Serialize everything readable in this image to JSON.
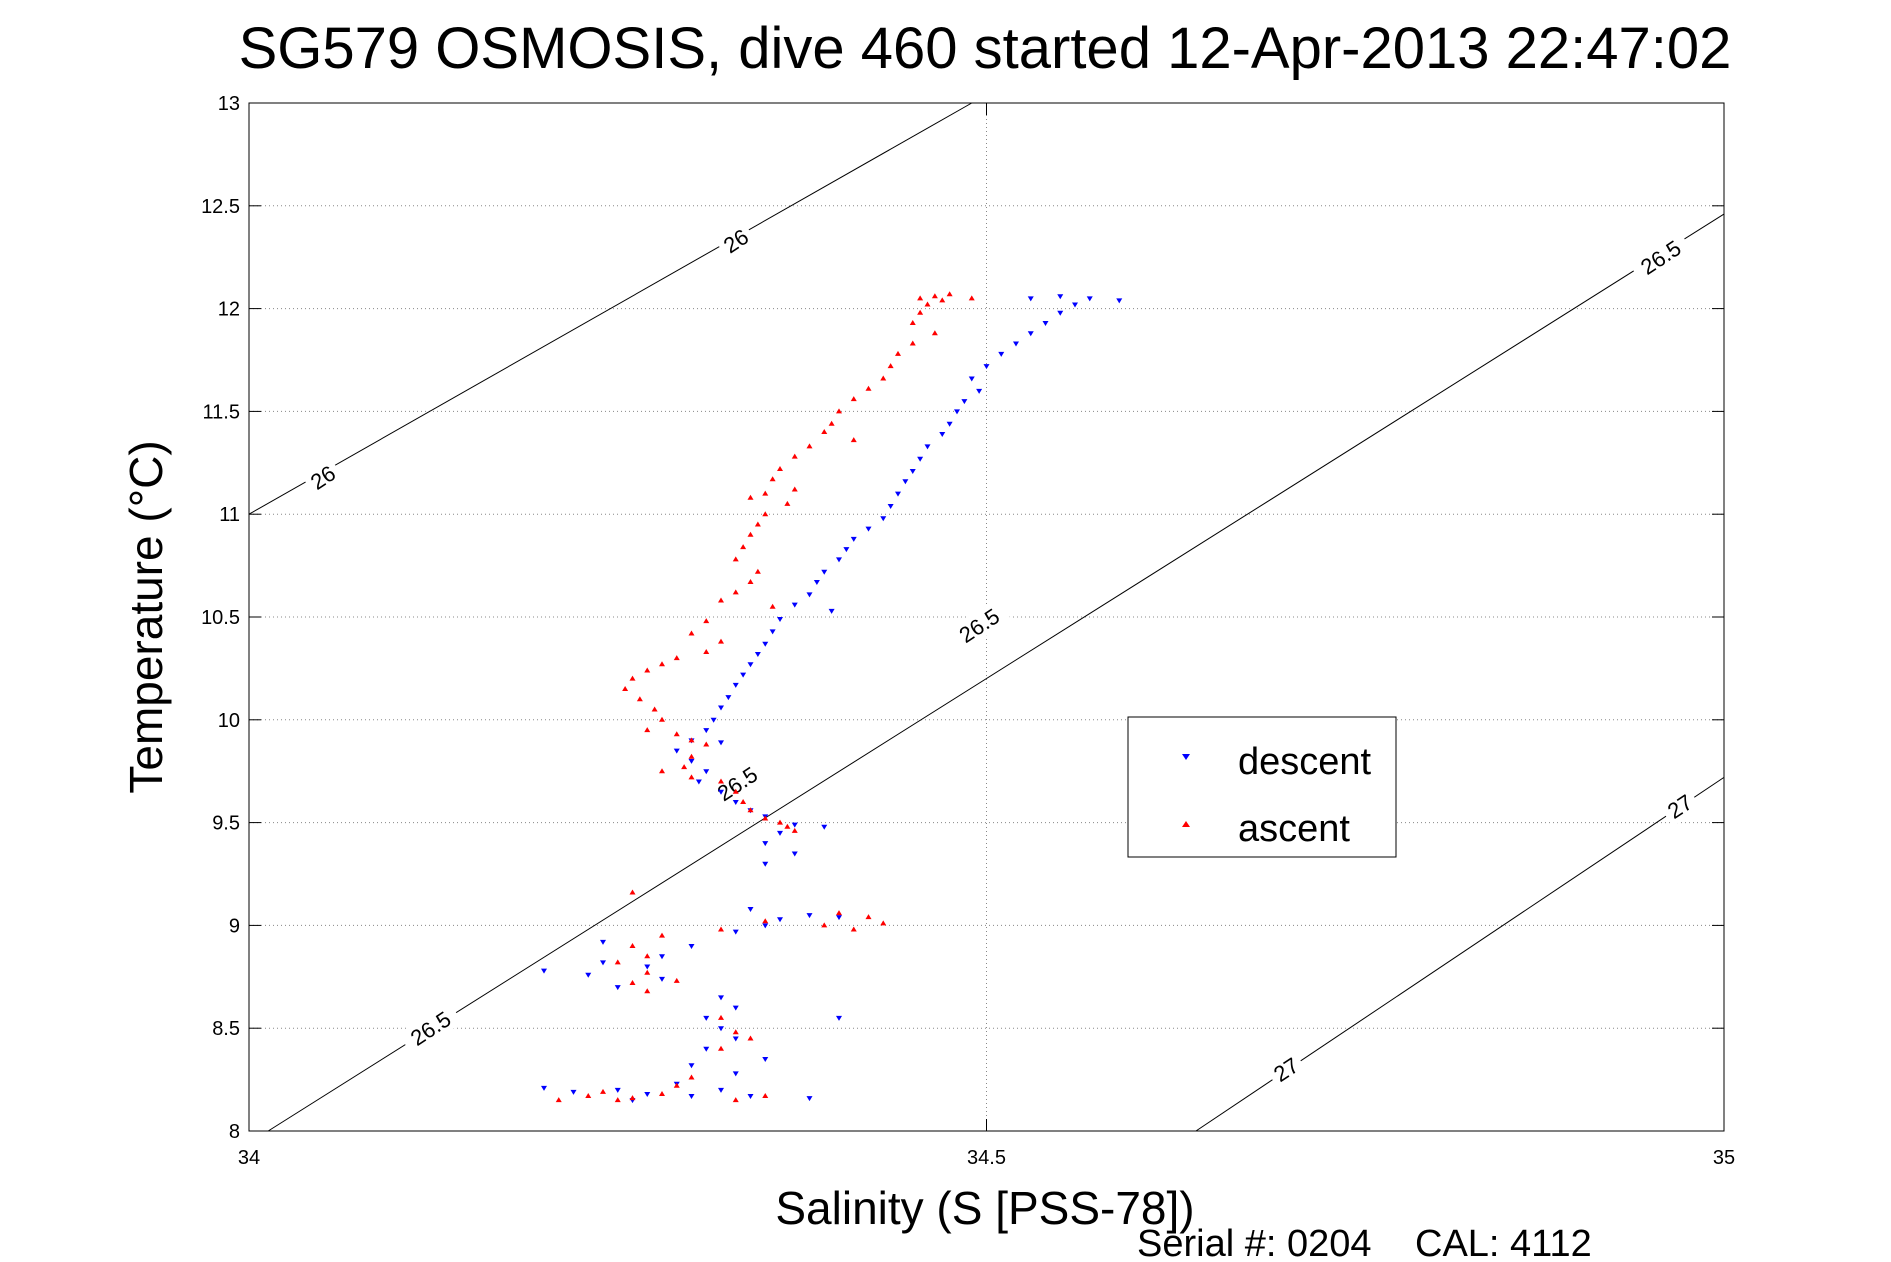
{
  "chart_data": {
    "type": "scatter",
    "title": "SG579 OSMOSIS, dive 460 started 12-Apr-2013 22:47:02",
    "xlabel": "Salinity (S [PSS-78])",
    "ylabel": "Temperature (°C)",
    "xlim": [
      34.0,
      35.0
    ],
    "ylim": [
      8.0,
      13.0
    ],
    "xticks": [
      "34",
      "34.5",
      "35"
    ],
    "yticks": [
      "8",
      "8.5",
      "9",
      "9.5",
      "10",
      "10.5",
      "11",
      "11.5",
      "12",
      "12.5",
      "13"
    ],
    "grid": true,
    "legend": {
      "placement": "center-right",
      "entries": [
        "descent",
        "ascent"
      ]
    },
    "series": [
      {
        "name": "descent",
        "color": "#0000ff",
        "marker": "triangle-down",
        "points": [
          [
            34.59,
            12.04
          ],
          [
            34.57,
            12.05
          ],
          [
            34.55,
            12.06
          ],
          [
            34.53,
            12.05
          ],
          [
            34.56,
            12.02
          ],
          [
            34.55,
            11.98
          ],
          [
            34.54,
            11.93
          ],
          [
            34.53,
            11.88
          ],
          [
            34.52,
            11.83
          ],
          [
            34.51,
            11.78
          ],
          [
            34.5,
            11.72
          ],
          [
            34.49,
            11.66
          ],
          [
            34.495,
            11.6
          ],
          [
            34.485,
            11.55
          ],
          [
            34.48,
            11.5
          ],
          [
            34.475,
            11.44
          ],
          [
            34.47,
            11.39
          ],
          [
            34.46,
            11.33
          ],
          [
            34.455,
            11.27
          ],
          [
            34.45,
            11.21
          ],
          [
            34.445,
            11.16
          ],
          [
            34.44,
            11.1
          ],
          [
            34.435,
            11.04
          ],
          [
            34.43,
            10.98
          ],
          [
            34.42,
            10.93
          ],
          [
            34.41,
            10.88
          ],
          [
            34.405,
            10.83
          ],
          [
            34.4,
            10.78
          ],
          [
            34.39,
            10.72
          ],
          [
            34.385,
            10.67
          ],
          [
            34.38,
            10.61
          ],
          [
            34.37,
            10.56
          ],
          [
            34.395,
            10.53
          ],
          [
            34.36,
            10.49
          ],
          [
            34.355,
            10.43
          ],
          [
            34.35,
            10.37
          ],
          [
            34.345,
            10.32
          ],
          [
            34.34,
            10.27
          ],
          [
            34.335,
            10.22
          ],
          [
            34.33,
            10.17
          ],
          [
            34.325,
            10.11
          ],
          [
            34.32,
            10.06
          ],
          [
            34.315,
            10.0
          ],
          [
            34.31,
            9.95
          ],
          [
            34.3,
            9.9
          ],
          [
            34.32,
            9.89
          ],
          [
            34.29,
            9.85
          ],
          [
            34.3,
            9.8
          ],
          [
            34.31,
            9.75
          ],
          [
            34.305,
            9.7
          ],
          [
            34.32,
            9.65
          ],
          [
            34.33,
            9.6
          ],
          [
            34.34,
            9.56
          ],
          [
            34.35,
            9.53
          ],
          [
            34.37,
            9.49
          ],
          [
            34.39,
            9.48
          ],
          [
            34.36,
            9.45
          ],
          [
            34.35,
            9.4
          ],
          [
            34.37,
            9.35
          ],
          [
            34.35,
            9.3
          ],
          [
            34.38,
            9.05
          ],
          [
            34.4,
            9.04
          ],
          [
            34.36,
            9.03
          ],
          [
            34.34,
            9.08
          ],
          [
            34.35,
            9.0
          ],
          [
            34.33,
            8.97
          ],
          [
            34.3,
            8.9
          ],
          [
            34.28,
            8.85
          ],
          [
            34.27,
            8.8
          ],
          [
            34.24,
            8.82
          ],
          [
            34.23,
            8.76
          ],
          [
            34.2,
            8.78
          ],
          [
            34.25,
            8.7
          ],
          [
            34.32,
            8.65
          ],
          [
            34.33,
            8.6
          ],
          [
            34.31,
            8.55
          ],
          [
            34.32,
            8.5
          ],
          [
            34.33,
            8.45
          ],
          [
            34.31,
            8.4
          ],
          [
            34.3,
            8.32
          ],
          [
            34.35,
            8.35
          ],
          [
            34.33,
            8.28
          ],
          [
            34.32,
            8.2
          ],
          [
            34.3,
            8.17
          ],
          [
            34.27,
            8.18
          ],
          [
            34.25,
            8.2
          ],
          [
            34.22,
            8.19
          ],
          [
            34.2,
            8.21
          ],
          [
            34.38,
            8.16
          ],
          [
            34.34,
            8.17
          ],
          [
            34.29,
            8.23
          ],
          [
            34.26,
            8.15
          ],
          [
            34.4,
            8.55
          ],
          [
            34.24,
            8.92
          ],
          [
            34.28,
            8.74
          ]
        ]
      },
      {
        "name": "ascent",
        "color": "#ff0000",
        "marker": "triangle-up",
        "points": [
          [
            34.475,
            12.07
          ],
          [
            34.465,
            12.06
          ],
          [
            34.455,
            12.05
          ],
          [
            34.47,
            12.04
          ],
          [
            34.49,
            12.05
          ],
          [
            34.46,
            12.02
          ],
          [
            34.455,
            11.98
          ],
          [
            34.45,
            11.93
          ],
          [
            34.465,
            11.88
          ],
          [
            34.45,
            11.83
          ],
          [
            34.44,
            11.78
          ],
          [
            34.435,
            11.72
          ],
          [
            34.43,
            11.66
          ],
          [
            34.42,
            11.61
          ],
          [
            34.41,
            11.56
          ],
          [
            34.4,
            11.5
          ],
          [
            34.395,
            11.44
          ],
          [
            34.39,
            11.4
          ],
          [
            34.41,
            11.36
          ],
          [
            34.38,
            11.33
          ],
          [
            34.37,
            11.28
          ],
          [
            34.36,
            11.22
          ],
          [
            34.355,
            11.17
          ],
          [
            34.37,
            11.12
          ],
          [
            34.35,
            11.1
          ],
          [
            34.34,
            11.08
          ],
          [
            34.365,
            11.05
          ],
          [
            34.35,
            11.0
          ],
          [
            34.345,
            10.95
          ],
          [
            34.34,
            10.9
          ],
          [
            34.335,
            10.84
          ],
          [
            34.33,
            10.78
          ],
          [
            34.345,
            10.72
          ],
          [
            34.34,
            10.67
          ],
          [
            34.33,
            10.62
          ],
          [
            34.32,
            10.58
          ],
          [
            34.355,
            10.55
          ],
          [
            34.31,
            10.48
          ],
          [
            34.3,
            10.42
          ],
          [
            34.32,
            10.38
          ],
          [
            34.31,
            10.33
          ],
          [
            34.29,
            10.3
          ],
          [
            34.28,
            10.27
          ],
          [
            34.27,
            10.24
          ],
          [
            34.26,
            10.2
          ],
          [
            34.255,
            10.15
          ],
          [
            34.265,
            10.1
          ],
          [
            34.275,
            10.05
          ],
          [
            34.28,
            10.0
          ],
          [
            34.27,
            9.95
          ],
          [
            34.29,
            9.93
          ],
          [
            34.3,
            9.9
          ],
          [
            34.31,
            9.88
          ],
          [
            34.3,
            9.82
          ],
          [
            34.295,
            9.77
          ],
          [
            34.28,
            9.75
          ],
          [
            34.3,
            9.72
          ],
          [
            34.32,
            9.7
          ],
          [
            34.33,
            9.65
          ],
          [
            34.335,
            9.6
          ],
          [
            34.34,
            9.56
          ],
          [
            34.35,
            9.52
          ],
          [
            34.36,
            9.5
          ],
          [
            34.37,
            9.46
          ],
          [
            34.365,
            9.48
          ],
          [
            34.4,
            9.06
          ],
          [
            34.42,
            9.04
          ],
          [
            34.43,
            9.01
          ],
          [
            34.41,
            8.98
          ],
          [
            34.39,
            9.0
          ],
          [
            34.35,
            9.02
          ],
          [
            34.32,
            8.98
          ],
          [
            34.28,
            8.95
          ],
          [
            34.26,
            8.9
          ],
          [
            34.27,
            8.85
          ],
          [
            34.25,
            8.82
          ],
          [
            34.27,
            8.77
          ],
          [
            34.29,
            8.73
          ],
          [
            34.27,
            8.68
          ],
          [
            34.26,
            8.72
          ],
          [
            34.26,
            9.16
          ],
          [
            34.32,
            8.55
          ],
          [
            34.33,
            8.48
          ],
          [
            34.34,
            8.45
          ],
          [
            34.32,
            8.4
          ],
          [
            34.3,
            8.26
          ],
          [
            34.29,
            8.22
          ],
          [
            34.28,
            8.18
          ],
          [
            34.26,
            8.16
          ],
          [
            34.25,
            8.15
          ],
          [
            34.23,
            8.17
          ],
          [
            34.21,
            8.15
          ],
          [
            34.24,
            8.19
          ],
          [
            34.33,
            8.15
          ],
          [
            34.35,
            8.17
          ]
        ]
      }
    ],
    "contours": [
      {
        "level": "26",
        "labels": [
          "26",
          "26"
        ]
      },
      {
        "level": "26.5",
        "labels": [
          "26.5",
          "26.5",
          "26.5",
          "26.5"
        ]
      },
      {
        "level": "27",
        "labels": [
          "27",
          "27"
        ]
      }
    ]
  },
  "footer": {
    "serial_text": "Serial #: 0204",
    "cal_text": "CAL: 4112"
  }
}
